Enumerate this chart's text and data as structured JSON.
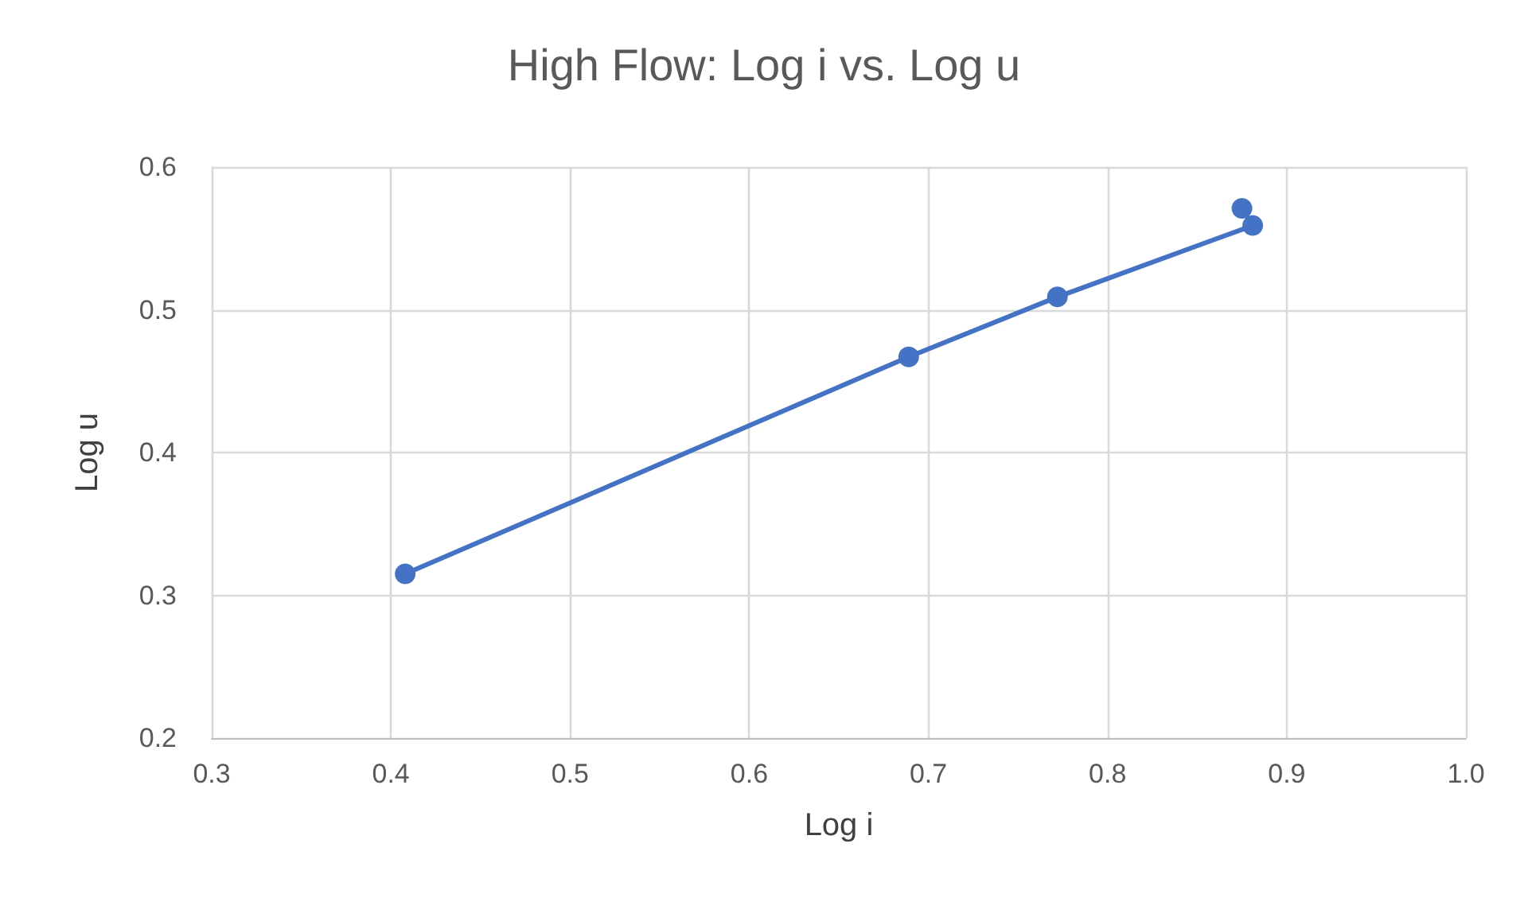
{
  "chart_data": {
    "type": "line",
    "title": "High Flow: Log i vs. Log u",
    "xlabel": "Log i",
    "ylabel": "Log u",
    "series": [
      {
        "color": "#4472c4",
        "x": [
          0.408,
          0.689,
          0.772,
          0.881,
          0.875
        ],
        "values": [
          0.315,
          0.467,
          0.509,
          0.559,
          0.571
        ]
      }
    ],
    "xlim": [
      0.3,
      1.0
    ],
    "xticks": [
      0.3,
      0.4,
      0.5,
      0.6,
      0.7,
      0.8,
      0.9,
      {
        "value": 1,
        "label": "1.0"
      }
    ],
    "ylim": [
      0.2,
      0.6
    ],
    "yticks": [
      0.2,
      0.3,
      0.4,
      0.5,
      0.6
    ],
    "grid": true,
    "marker": "circle",
    "line_style": "solid"
  }
}
